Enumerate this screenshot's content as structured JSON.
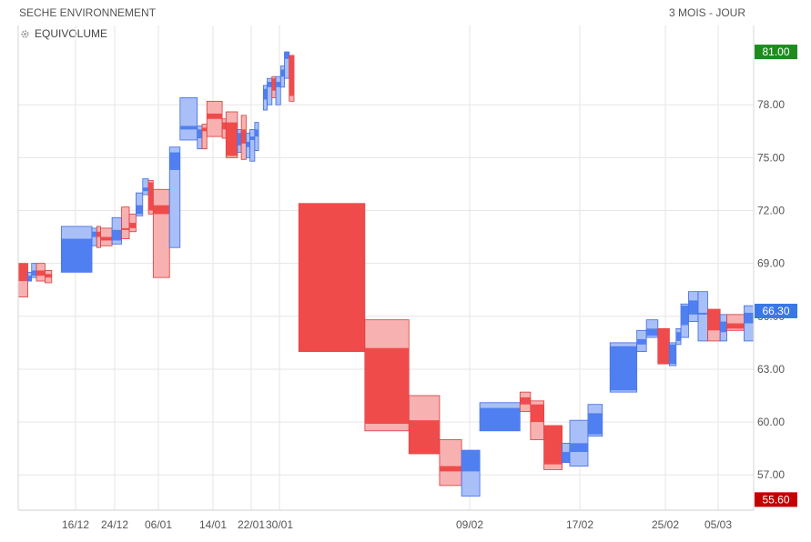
{
  "header": {
    "title": "SECHE ENVIRONNEMENT",
    "period": "3 MOIS - JOUR",
    "indicator_label": "EQUIVOLUME",
    "indicator_icon": "gear-icon"
  },
  "chart_data": {
    "type": "equivolume",
    "title": "SECHE ENVIRONNEMENT",
    "subtitle": "3 MOIS - JOUR",
    "ylim": [
      55.0,
      82.5
    ],
    "y_ticks": [
      57,
      60,
      63,
      66,
      69,
      72,
      75,
      78
    ],
    "y_tick_labels": [
      "57.00",
      "60.00",
      "63.00",
      "66.00",
      "69.00",
      "72.00",
      "75.00",
      "78.00"
    ],
    "x_tick_labels": [
      "16/12",
      "24/12",
      "06/01",
      "14/01",
      "22/01",
      "30/01",
      "09/02",
      "17/02",
      "25/02",
      "05/03"
    ],
    "badges": {
      "high": "81.00",
      "last": "66.30",
      "low": "55.60"
    },
    "colors": {
      "up": "#4f7ff0",
      "down": "#f04b4b",
      "high_badge": "#1d8c1d",
      "last_badge": "#3a78e8",
      "low_badge": "#c40000"
    },
    "boxes": [
      {
        "x0": 0.0,
        "x1": 1.0,
        "open": 69.0,
        "close": 68.0,
        "high": 69.0,
        "low": 67.1,
        "dir": "down"
      },
      {
        "x0": 1.0,
        "x1": 1.4,
        "open": 68.0,
        "close": 68.3,
        "high": 68.5,
        "low": 68.0,
        "dir": "up"
      },
      {
        "x0": 1.4,
        "x1": 1.9,
        "open": 68.3,
        "close": 68.6,
        "high": 69.0,
        "low": 68.2,
        "dir": "up"
      },
      {
        "x0": 1.9,
        "x1": 2.8,
        "open": 68.6,
        "close": 68.3,
        "high": 69.0,
        "low": 68.0,
        "dir": "down"
      },
      {
        "x0": 2.8,
        "x1": 3.5,
        "open": 68.4,
        "close": 68.2,
        "high": 68.6,
        "low": 67.9,
        "dir": "down"
      },
      {
        "x0": 4.5,
        "x1": 7.7,
        "open": 68.5,
        "close": 70.4,
        "high": 71.1,
        "low": 68.5,
        "dir": "up"
      },
      {
        "x0": 7.7,
        "x1": 8.2,
        "open": 70.5,
        "close": 70.8,
        "high": 71.0,
        "low": 70.0,
        "dir": "up"
      },
      {
        "x0": 8.2,
        "x1": 8.6,
        "open": 70.8,
        "close": 70.5,
        "high": 71.1,
        "low": 69.9,
        "dir": "down"
      },
      {
        "x0": 8.6,
        "x1": 9.8,
        "open": 70.5,
        "close": 70.3,
        "high": 71.0,
        "low": 70.0,
        "dir": "down"
      },
      {
        "x0": 9.8,
        "x1": 10.8,
        "open": 70.3,
        "close": 70.9,
        "high": 71.6,
        "low": 70.1,
        "dir": "up"
      },
      {
        "x0": 10.8,
        "x1": 11.6,
        "open": 71.0,
        "close": 70.9,
        "high": 72.2,
        "low": 70.4,
        "dir": "down"
      },
      {
        "x0": 11.6,
        "x1": 12.3,
        "open": 71.3,
        "close": 71.0,
        "high": 71.8,
        "low": 70.8,
        "dir": "down"
      },
      {
        "x0": 12.3,
        "x1": 13.0,
        "open": 71.8,
        "close": 72.3,
        "high": 73.0,
        "low": 71.7,
        "dir": "up"
      },
      {
        "x0": 13.0,
        "x1": 13.6,
        "open": 73.1,
        "close": 73.3,
        "high": 73.8,
        "low": 72.9,
        "dir": "up"
      },
      {
        "x0": 13.6,
        "x1": 14.1,
        "open": 73.6,
        "close": 72.0,
        "high": 73.7,
        "low": 71.8,
        "dir": "down"
      },
      {
        "x0": 14.1,
        "x1": 15.8,
        "open": 72.3,
        "close": 71.8,
        "high": 73.2,
        "low": 68.2,
        "dir": "down"
      },
      {
        "x0": 15.8,
        "x1": 16.9,
        "open": 74.3,
        "close": 75.3,
        "high": 75.6,
        "low": 69.9,
        "dir": "up"
      },
      {
        "x0": 16.9,
        "x1": 18.7,
        "open": 76.6,
        "close": 76.8,
        "high": 78.4,
        "low": 76.0,
        "dir": "up"
      },
      {
        "x0": 18.7,
        "x1": 19.2,
        "open": 76.1,
        "close": 76.6,
        "high": 76.8,
        "low": 75.5,
        "dir": "up"
      },
      {
        "x0": 19.2,
        "x1": 19.7,
        "open": 76.7,
        "close": 76.5,
        "high": 76.9,
        "low": 75.5,
        "dir": "down"
      },
      {
        "x0": 19.7,
        "x1": 21.3,
        "open": 77.5,
        "close": 77.2,
        "high": 78.2,
        "low": 76.2,
        "dir": "down"
      },
      {
        "x0": 21.3,
        "x1": 21.7,
        "open": 77.0,
        "close": 76.6,
        "high": 77.2,
        "low": 76.1,
        "dir": "down"
      },
      {
        "x0": 21.7,
        "x1": 22.9,
        "open": 77.0,
        "close": 75.1,
        "high": 77.6,
        "low": 75.0,
        "dir": "down"
      },
      {
        "x0": 22.9,
        "x1": 23.3,
        "open": 75.7,
        "close": 76.4,
        "high": 76.6,
        "low": 75.3,
        "dir": "up"
      },
      {
        "x0": 23.3,
        "x1": 23.8,
        "open": 76.6,
        "close": 75.8,
        "high": 77.4,
        "low": 74.9,
        "dir": "down"
      },
      {
        "x0": 23.8,
        "x1": 24.2,
        "open": 75.6,
        "close": 75.9,
        "high": 76.4,
        "low": 75.0,
        "dir": "up"
      },
      {
        "x0": 24.2,
        "x1": 24.7,
        "open": 76.0,
        "close": 76.2,
        "high": 76.6,
        "low": 74.8,
        "dir": "up"
      },
      {
        "x0": 24.7,
        "x1": 25.1,
        "open": 76.2,
        "close": 76.6,
        "high": 77.0,
        "low": 75.4,
        "dir": "up"
      },
      {
        "x0": 25.6,
        "x1": 26.0,
        "open": 78.3,
        "close": 78.9,
        "high": 79.1,
        "low": 77.7,
        "dir": "up"
      },
      {
        "x0": 26.0,
        "x1": 26.5,
        "open": 79.0,
        "close": 79.3,
        "high": 79.5,
        "low": 78.0,
        "dir": "up"
      },
      {
        "x0": 26.5,
        "x1": 26.9,
        "open": 79.5,
        "close": 78.8,
        "high": 79.6,
        "low": 78.4,
        "dir": "down"
      },
      {
        "x0": 26.9,
        "x1": 27.4,
        "open": 79.0,
        "close": 79.3,
        "high": 79.6,
        "low": 78.0,
        "dir": "up"
      },
      {
        "x0": 27.4,
        "x1": 27.8,
        "open": 79.6,
        "close": 80.0,
        "high": 80.2,
        "low": 79.0,
        "dir": "up"
      },
      {
        "x0": 27.8,
        "x1": 28.3,
        "open": 80.6,
        "close": 81.0,
        "high": 81.0,
        "low": 79.5,
        "dir": "up"
      },
      {
        "x0": 28.3,
        "x1": 28.8,
        "open": 80.8,
        "close": 78.5,
        "high": 80.8,
        "low": 78.2,
        "dir": "down"
      },
      {
        "x0": 29.3,
        "x1": 36.2,
        "open": 72.4,
        "close": 64.0,
        "high": 72.4,
        "low": 64.0,
        "dir": "down"
      },
      {
        "x0": 36.2,
        "x1": 40.8,
        "open": 64.2,
        "close": 59.9,
        "high": 65.8,
        "low": 59.5,
        "dir": "down"
      },
      {
        "x0": 40.8,
        "x1": 44.0,
        "open": 60.1,
        "close": 58.2,
        "high": 61.5,
        "low": 58.2,
        "dir": "down"
      },
      {
        "x0": 44.0,
        "x1": 46.3,
        "open": 57.5,
        "close": 57.2,
        "high": 59.0,
        "low": 56.4,
        "dir": "down"
      },
      {
        "x0": 46.3,
        "x1": 48.2,
        "open": 57.2,
        "close": 58.4,
        "high": 58.4,
        "low": 55.8,
        "dir": "up"
      },
      {
        "x0": 48.2,
        "x1": 52.4,
        "open": 59.5,
        "close": 60.8,
        "high": 61.1,
        "low": 59.5,
        "dir": "up"
      },
      {
        "x0": 52.4,
        "x1": 53.5,
        "open": 61.4,
        "close": 61.0,
        "high": 61.7,
        "low": 60.6,
        "dir": "down"
      },
      {
        "x0": 53.5,
        "x1": 54.9,
        "open": 61.0,
        "close": 60.0,
        "high": 61.2,
        "low": 59.0,
        "dir": "down"
      },
      {
        "x0": 54.9,
        "x1": 56.8,
        "open": 59.8,
        "close": 57.6,
        "high": 59.8,
        "low": 57.3,
        "dir": "down"
      },
      {
        "x0": 56.8,
        "x1": 57.6,
        "open": 57.7,
        "close": 58.3,
        "high": 58.8,
        "low": 57.7,
        "dir": "up"
      },
      {
        "x0": 57.6,
        "x1": 59.5,
        "open": 58.3,
        "close": 58.8,
        "high": 60.1,
        "low": 57.5,
        "dir": "up"
      },
      {
        "x0": 59.5,
        "x1": 61.0,
        "open": 59.3,
        "close": 60.5,
        "high": 61.0,
        "low": 59.2,
        "dir": "up"
      },
      {
        "x0": 61.8,
        "x1": 64.6,
        "open": 61.8,
        "close": 64.3,
        "high": 64.5,
        "low": 61.7,
        "dir": "up"
      },
      {
        "x0": 64.6,
        "x1": 65.6,
        "open": 64.4,
        "close": 64.7,
        "high": 65.2,
        "low": 64.0,
        "dir": "up"
      },
      {
        "x0": 65.6,
        "x1": 66.8,
        "open": 64.9,
        "close": 65.3,
        "high": 65.8,
        "low": 64.8,
        "dir": "up"
      },
      {
        "x0": 66.8,
        "x1": 68.0,
        "open": 65.3,
        "close": 63.3,
        "high": 65.3,
        "low": 63.3,
        "dir": "down"
      },
      {
        "x0": 68.0,
        "x1": 68.7,
        "open": 63.3,
        "close": 64.4,
        "high": 64.5,
        "low": 63.2,
        "dir": "up"
      },
      {
        "x0": 68.7,
        "x1": 69.2,
        "open": 64.6,
        "close": 65.1,
        "high": 65.3,
        "low": 64.4,
        "dir": "up"
      },
      {
        "x0": 69.2,
        "x1": 70.0,
        "open": 65.5,
        "close": 66.6,
        "high": 66.7,
        "low": 64.8,
        "dir": "up"
      },
      {
        "x0": 70.0,
        "x1": 71.0,
        "open": 66.1,
        "close": 66.9,
        "high": 67.4,
        "low": 65.7,
        "dir": "up"
      },
      {
        "x0": 71.0,
        "x1": 72.0,
        "open": 66.2,
        "close": 66.2,
        "high": 67.4,
        "low": 64.6,
        "dir": "up"
      },
      {
        "x0": 72.0,
        "x1": 73.3,
        "open": 66.4,
        "close": 65.2,
        "high": 66.4,
        "low": 64.6,
        "dir": "down"
      },
      {
        "x0": 73.3,
        "x1": 74.0,
        "open": 65.1,
        "close": 65.7,
        "high": 66.1,
        "low": 64.6,
        "dir": "up"
      },
      {
        "x0": 74.0,
        "x1": 75.8,
        "open": 65.6,
        "close": 65.3,
        "high": 66.1,
        "low": 65.2,
        "dir": "down"
      },
      {
        "x0": 75.8,
        "x1": 76.8,
        "open": 65.6,
        "close": 66.2,
        "high": 66.6,
        "low": 64.6,
        "dir": "up"
      }
    ]
  }
}
